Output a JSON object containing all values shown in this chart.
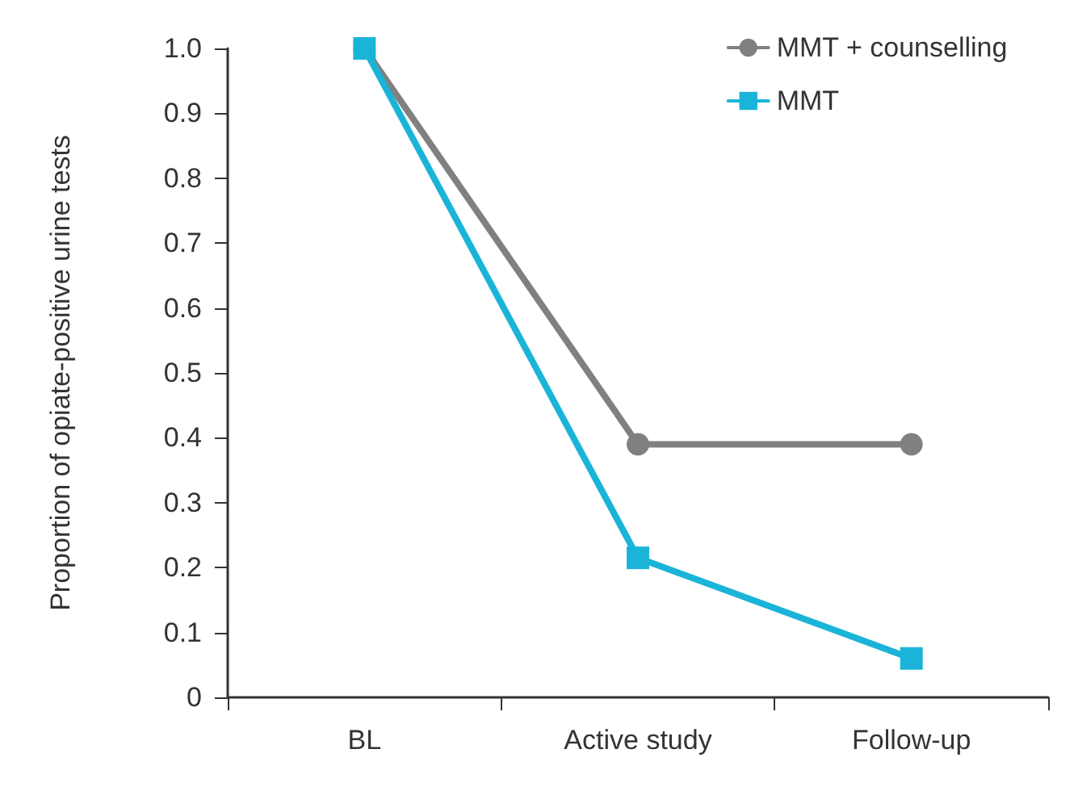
{
  "chart_data": {
    "type": "line",
    "ylabel": "Proportion of opiate-positive urine tests",
    "categories": [
      "BL",
      "Active study",
      "Follow-up"
    ],
    "series": [
      {
        "name": "MMT + counselling",
        "color": "#808080",
        "marker": "circle",
        "values": [
          1.0,
          0.39,
          0.39
        ]
      },
      {
        "name": "MMT",
        "color": "#1ab4d8",
        "marker": "square",
        "values": [
          1.0,
          0.215,
          0.06
        ]
      }
    ],
    "ylim": [
      0,
      1
    ],
    "yticks": [
      0,
      0.1,
      0.2,
      0.3,
      0.4,
      0.5,
      0.6,
      0.7,
      0.8,
      0.9,
      {
        "value": 1,
        "label": "1.0"
      }
    ],
    "grid": false,
    "legend": "top right"
  }
}
